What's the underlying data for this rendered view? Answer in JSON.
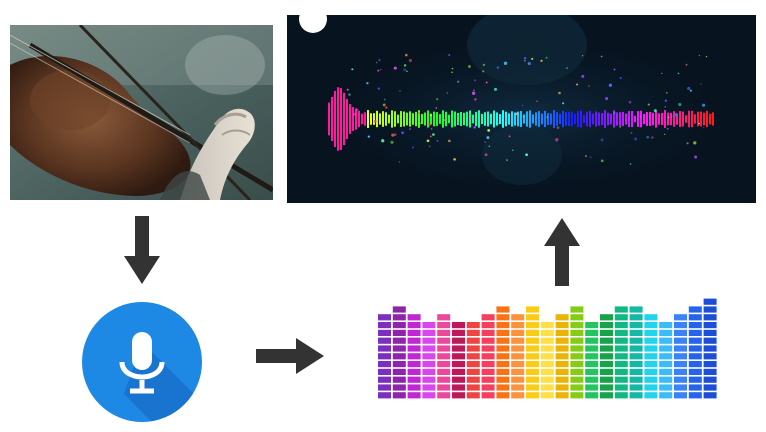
{
  "diagram": {
    "nodes": [
      {
        "id": "violin",
        "icon": "violin-photo"
      },
      {
        "id": "microphone",
        "icon": "microphone-icon"
      },
      {
        "id": "equalizer",
        "icon": "equalizer-bars"
      },
      {
        "id": "spectrum",
        "icon": "audio-spectrum-visual"
      }
    ],
    "edges": [
      {
        "from": "violin",
        "to": "microphone",
        "direction": "down"
      },
      {
        "from": "microphone",
        "to": "equalizer",
        "direction": "right"
      },
      {
        "from": "equalizer",
        "to": "spectrum",
        "direction": "up"
      }
    ]
  },
  "colors": {
    "mic_badge": "#1e88e5",
    "arrow": "#333333",
    "spectrum_bg": "#07131f",
    "equalizer_palette": [
      "#7b2fbf",
      "#8e24aa",
      "#c026d3",
      "#d946ef",
      "#ec4899",
      "#be185d",
      "#ef4444",
      "#f43f5e",
      "#f97316",
      "#fb923c",
      "#facc15",
      "#fde047",
      "#eab308",
      "#84cc16",
      "#22c55e",
      "#16a34a",
      "#10b981",
      "#14b8a6",
      "#22d3ee",
      "#38bdf8",
      "#3b82f6",
      "#2563eb",
      "#1d4ed8"
    ]
  },
  "equalizer": {
    "levels": [
      7,
      8,
      7,
      6,
      7,
      6,
      6,
      7,
      8,
      7,
      8,
      6,
      7,
      8,
      6,
      7,
      8,
      8,
      7,
      6,
      7,
      8,
      9
    ]
  }
}
